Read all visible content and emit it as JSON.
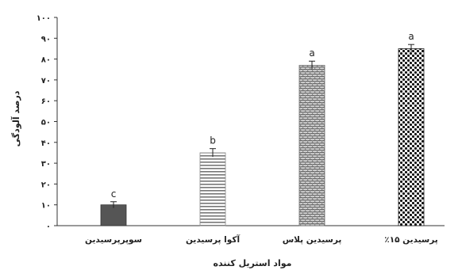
{
  "chart_data": {
    "type": "bar",
    "title": "",
    "xlabel": "مواد استریل کننده",
    "ylabel": "درصد آلودگی",
    "ylim": [
      0,
      100
    ],
    "yticks": [
      0,
      10,
      20,
      30,
      40,
      50,
      60,
      70,
      80,
      90,
      100
    ],
    "ytick_labels": [
      "۰",
      "۱۰",
      "۲۰",
      "۳۰",
      "۴۰",
      "۵۰",
      "۶۰",
      "۷۰",
      "۸۰",
      "۹۰",
      "۱۰۰"
    ],
    "categories": [
      "سوپرپرسیدین",
      "آکوا پرسیدین",
      "پرسیدین پلاس",
      "پرسیدین ۱۵٪"
    ],
    "values": [
      10,
      35,
      77,
      85
    ],
    "errors": [
      1.5,
      2,
      2,
      2
    ],
    "letters": [
      "c",
      "b",
      "a",
      "a"
    ],
    "grid": false,
    "legend": "none",
    "bar_colors": [
      "#555555",
      "#777777",
      "#666666",
      "#111111"
    ]
  }
}
